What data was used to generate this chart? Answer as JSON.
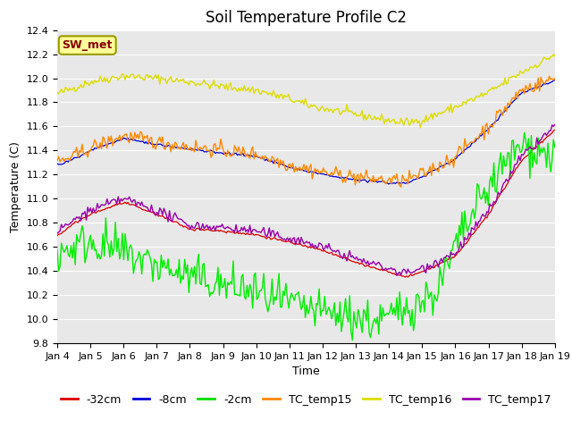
{
  "title": "Soil Temperature Profile C2",
  "xlabel": "Time",
  "ylabel": "Temperature (C)",
  "ylim": [
    9.8,
    12.4
  ],
  "xlim": [
    0,
    15
  ],
  "x_tick_labels": [
    "Jan 4",
    "Jan 5",
    "Jan 6",
    "Jan 7",
    "Jan 8",
    "Jan 9",
    "Jan 10",
    "Jan 11",
    "Jan 12",
    "Jan 13",
    "Jan 14",
    "Jan 15",
    "Jan 16",
    "Jan 17",
    "Jan 18",
    "Jan 19"
  ],
  "legend_labels": [
    "-32cm",
    "-8cm",
    "-2cm",
    "TC_temp15",
    "TC_temp16",
    "TC_temp17"
  ],
  "legend_colors": [
    "#dd0000",
    "#0000dd",
    "#00dd00",
    "#ff8800",
    "#dddd00",
    "#9900aa"
  ],
  "line_colors": {
    "neg32": "#dd0000",
    "neg8": "#0000dd",
    "neg2": "#00ee00",
    "tc15": "#ff8800",
    "tc16": "#dddd00",
    "tc17": "#9900aa"
  },
  "annotation_text": "SW_met",
  "annotation_color": "#880000",
  "annotation_bg": "#ffff99",
  "annotation_edge": "#999900",
  "figure_bg": "#ffffff",
  "plot_bg": "#e8e8e8",
  "grid_color": "#ffffff",
  "title_fontsize": 12,
  "tick_fontsize": 8,
  "label_fontsize": 9,
  "legend_fontsize": 9
}
